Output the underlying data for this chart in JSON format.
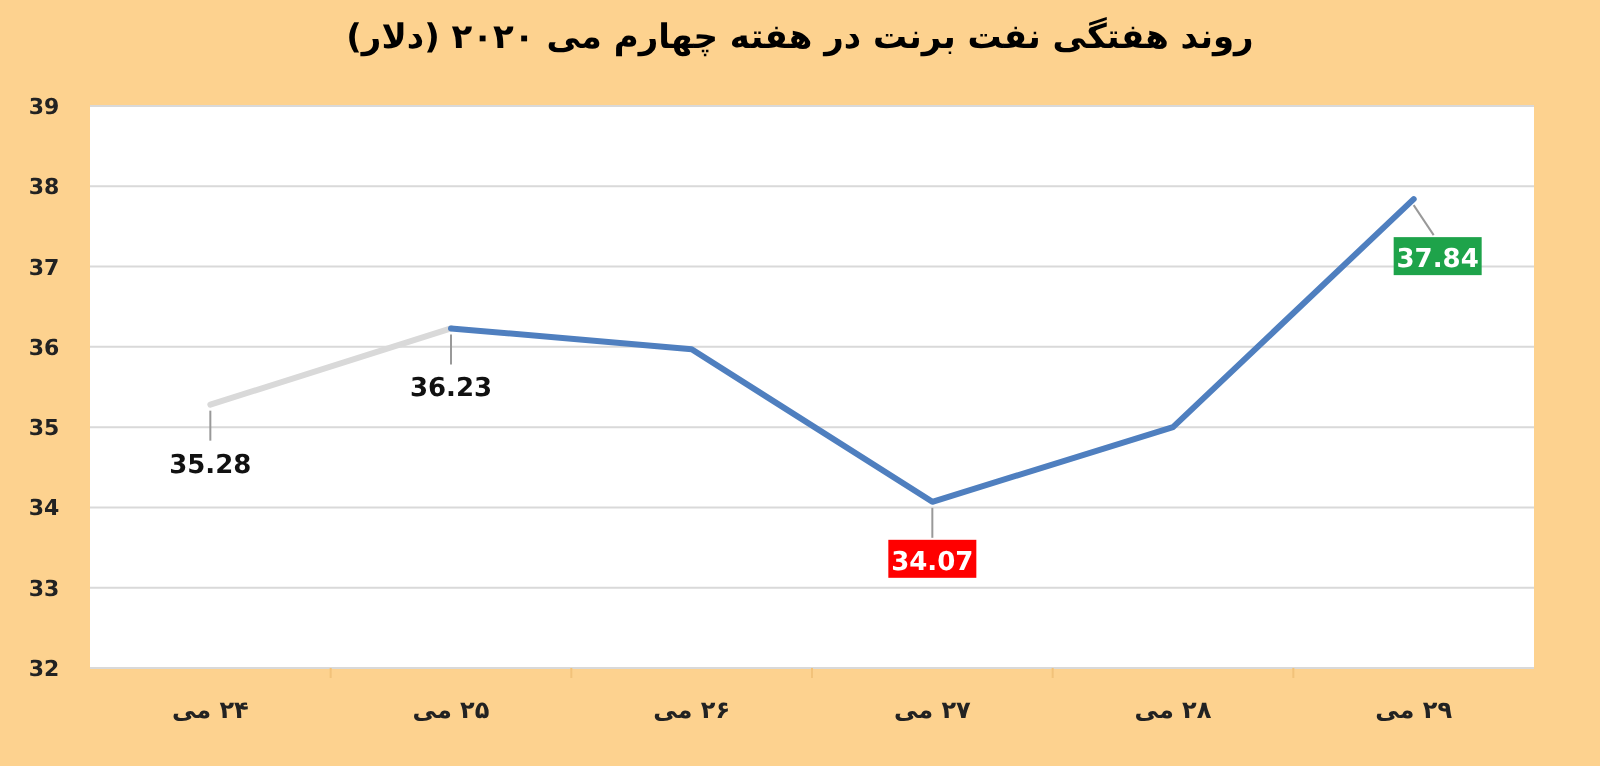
{
  "chart_data": {
    "type": "line",
    "title": "روند هفتگی نفت برنت در هفته چهارم می ۲۰۲۰ (دلار)",
    "categories": [
      "۲۴ می",
      "۲۵ می",
      "۲۶ می",
      "۲۷ می",
      "۲۸ می",
      "۲۹ می"
    ],
    "series": [
      {
        "color": "#d9d9d9",
        "values": [
          35.28,
          36.23,
          null,
          null,
          null,
          null
        ],
        "value_labels": [
          "35.28",
          null,
          null,
          null,
          null,
          null
        ]
      },
      {
        "color": "#4f7fbf",
        "values": [
          null,
          36.23,
          35.97,
          34.07,
          35.0,
          37.84
        ],
        "value_labels": [
          null,
          "36.23",
          null,
          "34.07",
          null,
          "37.84"
        ]
      }
    ],
    "ylim": [
      32,
      39
    ],
    "yticks": [
      32,
      33,
      34,
      35,
      36,
      37,
      38,
      39
    ],
    "grid": "y"
  }
}
